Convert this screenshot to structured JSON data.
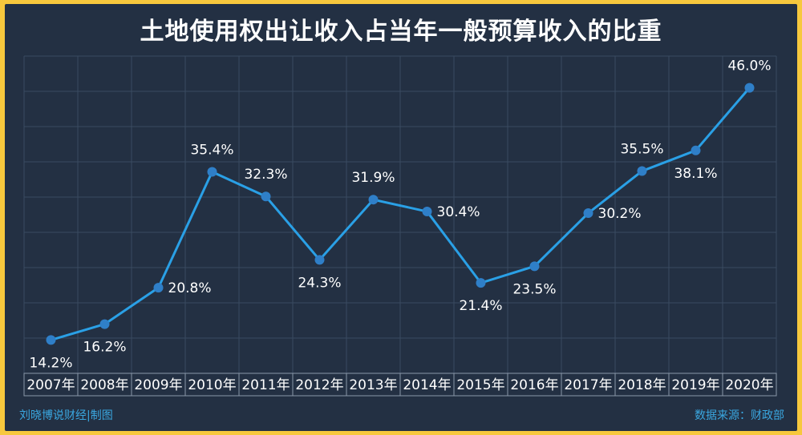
{
  "chart_data": {
    "type": "line",
    "title": "土地使用权出让收入占当年一般预算收入的比重",
    "categories": [
      "2007年",
      "2008年",
      "2009年",
      "2010年",
      "2011年",
      "2012年",
      "2013年",
      "2014年",
      "2015年",
      "2016年",
      "2017年",
      "2018年",
      "2019年",
      "2020年"
    ],
    "series": [
      {
        "values": [
          14.2,
          16.2,
          20.8,
          35.4,
          32.3,
          24.3,
          31.9,
          30.4,
          21.4,
          23.5,
          30.2,
          35.5,
          38.1,
          46.0
        ],
        "labels": [
          "14.2%",
          "16.2%",
          "20.8%",
          "35.4%",
          "32.3%",
          "24.3%",
          "31.9%",
          "30.4%",
          "21.4%",
          "23.5%",
          "30.2%",
          "35.5%",
          "38.1%",
          "46.0%"
        ]
      }
    ],
    "label_placement": [
      "below",
      "below",
      "right",
      "above",
      "above",
      "below",
      "above",
      "right",
      "below",
      "below",
      "right",
      "above",
      "below",
      "above"
    ],
    "ylim": [
      10,
      50
    ],
    "grid": true,
    "colors": {
      "line": "#2aa0e6",
      "marker": "#2f7fc8",
      "grid": "#3a4a60",
      "text": "#ffffff",
      "background": "#233043",
      "border": "#f7c83d"
    }
  },
  "footer": {
    "credit": "刘晓博说财经|制图",
    "source": "数据来源：财政部"
  }
}
